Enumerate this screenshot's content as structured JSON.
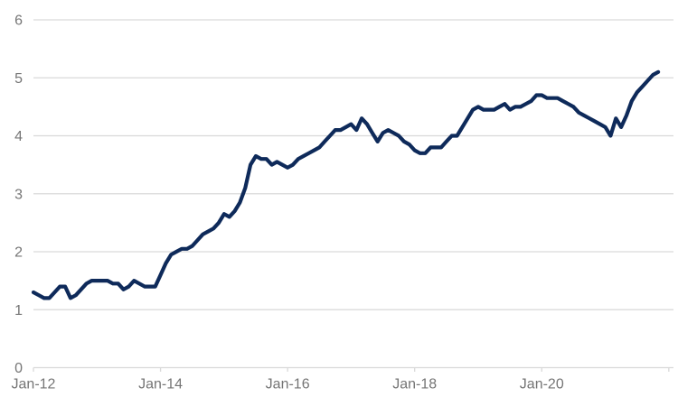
{
  "chart_data": {
    "type": "line",
    "title": "",
    "xlabel": "",
    "ylabel": "",
    "x_start": "Jan-12",
    "x_frequency": "monthly",
    "x_end": "Nov-21",
    "x_tick_labels": [
      "Jan-12",
      "Jan-14",
      "Jan-16",
      "Jan-18",
      "Jan-20"
    ],
    "x_tick_month_offsets": [
      0,
      24,
      48,
      72,
      96,
      120
    ],
    "x_tick_labelled_count": 5,
    "y_tick_labels": [
      "0",
      "1",
      "2",
      "3",
      "4",
      "5",
      "6"
    ],
    "ylim": [
      0,
      6
    ],
    "y_tick_step": 1,
    "grid": "horizontal",
    "legend_position": "none",
    "colors": {
      "line": "#0E2A5A",
      "gridline": "#D9D9D9",
      "tick": "#BFBFBF",
      "label": "#757575",
      "background": "#FFFFFF"
    },
    "series": [
      {
        "name": "value",
        "start": "Jan-12",
        "values": [
          1.3,
          1.25,
          1.2,
          1.2,
          1.3,
          1.4,
          1.4,
          1.2,
          1.25,
          1.35,
          1.45,
          1.5,
          1.5,
          1.5,
          1.5,
          1.45,
          1.45,
          1.35,
          1.4,
          1.5,
          1.45,
          1.4,
          1.4,
          1.4,
          1.6,
          1.8,
          1.95,
          2.0,
          2.05,
          2.05,
          2.1,
          2.2,
          2.3,
          2.35,
          2.4,
          2.5,
          2.65,
          2.6,
          2.7,
          2.85,
          3.1,
          3.5,
          3.65,
          3.6,
          3.6,
          3.5,
          3.55,
          3.5,
          3.45,
          3.5,
          3.6,
          3.65,
          3.7,
          3.75,
          3.8,
          3.9,
          4.0,
          4.1,
          4.1,
          4.15,
          4.2,
          4.1,
          4.3,
          4.2,
          4.05,
          3.9,
          4.05,
          4.1,
          4.05,
          4.0,
          3.9,
          3.85,
          3.75,
          3.7,
          3.7,
          3.8,
          3.8,
          3.8,
          3.9,
          4.0,
          4.0,
          4.15,
          4.3,
          4.45,
          4.5,
          4.45,
          4.45,
          4.45,
          4.5,
          4.55,
          4.45,
          4.5,
          4.5,
          4.55,
          4.6,
          4.7,
          4.7,
          4.65,
          4.65,
          4.65,
          4.6,
          4.55,
          4.5,
          4.4,
          4.35,
          4.3,
          4.25,
          4.2,
          4.15,
          4.0,
          4.3,
          4.15,
          4.35,
          4.6,
          4.75,
          4.85,
          4.95,
          5.05,
          5.1
        ]
      }
    ]
  }
}
